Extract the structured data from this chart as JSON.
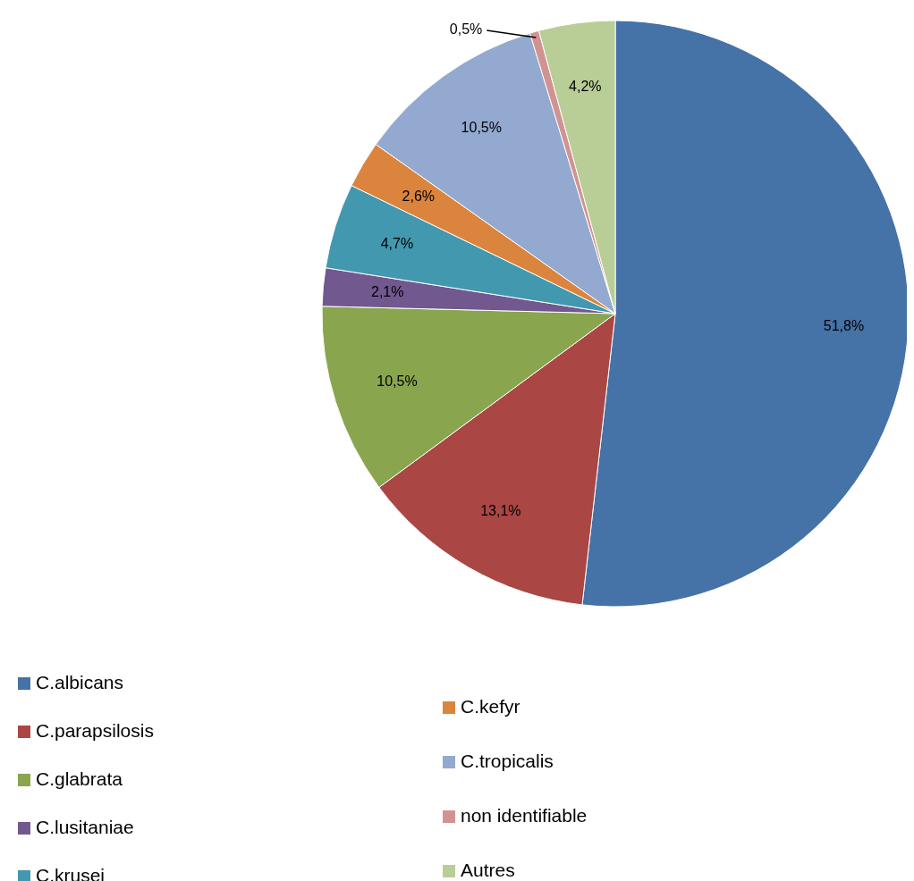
{
  "chart_data": {
    "type": "pie",
    "categories": [
      "C.albicans",
      "C.parapsilosis",
      "C.glabrata",
      "C.lusitaniae",
      "C.krusei",
      "C.kefyr",
      "C.tropicalis",
      "non identifiable",
      "Autres"
    ],
    "values": [
      51.8,
      13.1,
      10.5,
      2.1,
      4.7,
      2.6,
      10.5,
      0.5,
      4.2
    ],
    "value_labels": [
      "51,8%",
      "13,1%",
      "10,5%",
      "2,1%",
      "4,7%",
      "2,6%",
      "10,5%",
      "0,5%",
      "4,2%"
    ],
    "colors": [
      "#4572a7",
      "#aa4643",
      "#89a54e",
      "#71588f",
      "#4198af",
      "#db843d",
      "#93a9cf",
      "#d19392",
      "#b9cd96"
    ],
    "legend": "bottom"
  }
}
